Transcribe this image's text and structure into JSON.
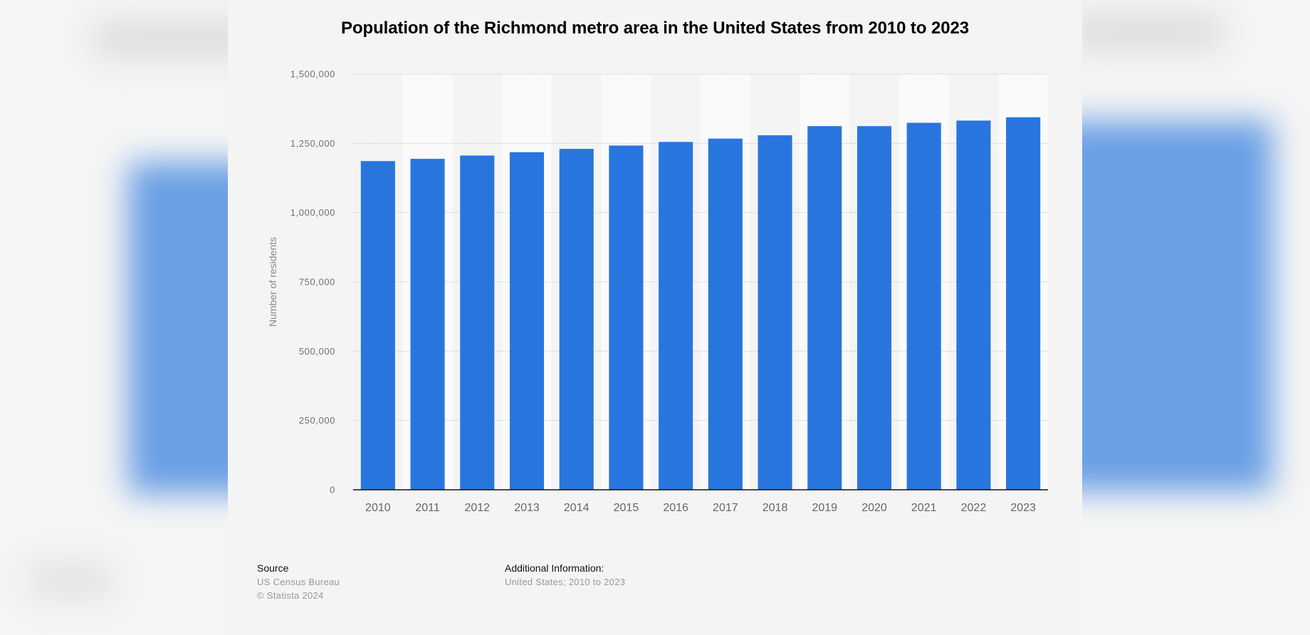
{
  "chart_data": {
    "type": "bar",
    "title": "Population of the Richmond metro area in the United States from 2010 to 2023",
    "xlabel": "",
    "ylabel": "Number of residents",
    "ylim": [
      0,
      1500000
    ],
    "yticks": [
      0,
      250000,
      500000,
      750000,
      1000000,
      1250000,
      1500000
    ],
    "ytick_labels": [
      "0",
      "250,000",
      "500,000",
      "750,000",
      "1,000,000",
      "1,250,000",
      "1,500,000"
    ],
    "categories": [
      "2010",
      "2011",
      "2012",
      "2013",
      "2014",
      "2015",
      "2016",
      "2017",
      "2018",
      "2019",
      "2020",
      "2021",
      "2022",
      "2023"
    ],
    "values": [
      1186000,
      1194000,
      1206000,
      1218000,
      1230000,
      1242000,
      1255000,
      1267000,
      1279000,
      1312000,
      1312000,
      1324000,
      1332000,
      1344000
    ],
    "grid": true,
    "legend": "none",
    "bar_color": "#2876dd"
  },
  "footer": {
    "source_title": "Source",
    "source_lines": [
      "US Census Bureau",
      "© Statista 2024"
    ],
    "info_title": "Additional Information:",
    "info_lines": [
      "United States; 2010 to 2023"
    ]
  }
}
